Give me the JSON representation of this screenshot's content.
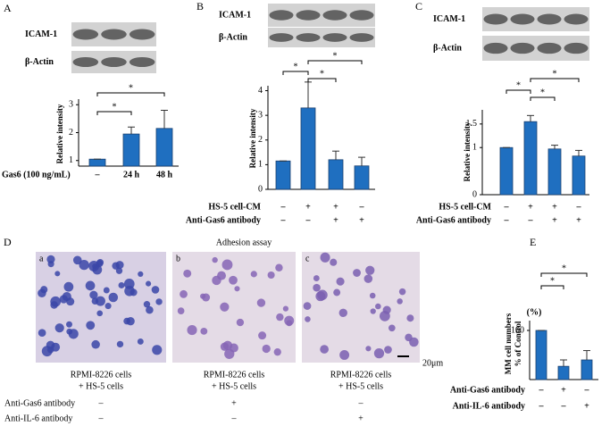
{
  "chart_data": [
    {
      "type": "bar",
      "panel": "A",
      "blot_labels": [
        "ICAM-1",
        "β-Actin"
      ],
      "ylabel": "Relative intensity",
      "xlabel": "Gas6 (100 ng/mL)",
      "categories": [
        "–",
        "24 h",
        "48 h"
      ],
      "values": [
        1.05,
        1.95,
        2.15
      ],
      "errors": [
        0,
        0.25,
        0.65
      ],
      "color": "#1f6fc0",
      "ylim": [
        0.8,
        3.2
      ],
      "yticks": [
        1,
        2,
        3
      ],
      "annotations": [
        "*",
        "*"
      ]
    },
    {
      "type": "bar",
      "panel": "B",
      "blot_labels": [
        "ICAM-1",
        "β-Actin"
      ],
      "ylabel": "Relative intensity",
      "conditions": [
        {
          "name": "HS-5 cell-CM",
          "values": [
            "–",
            "+",
            "+",
            "–"
          ]
        },
        {
          "name": "Anti-Gas6 antibody",
          "values": [
            "–",
            "–",
            "+",
            "+"
          ]
        }
      ],
      "values": [
        1.15,
        3.3,
        1.2,
        0.95
      ],
      "errors": [
        0,
        1.05,
        0.35,
        0.35
      ],
      "color": "#1f6fc0",
      "ylim": [
        0,
        4.2
      ],
      "yticks": [
        0,
        1,
        2,
        3,
        4
      ],
      "annotations": [
        "*",
        "*",
        "*"
      ]
    },
    {
      "type": "bar",
      "panel": "C",
      "blot_labels": [
        "ICAM-1",
        "β-Actin"
      ],
      "ylabel": "Relative intensity",
      "conditions": [
        {
          "name": "HS-5 cell-CM",
          "values": [
            "–",
            "+",
            "+",
            "–"
          ]
        },
        {
          "name": "Anti-Gas6 antibody",
          "values": [
            "–",
            "–",
            "+",
            "+"
          ]
        }
      ],
      "values": [
        1.0,
        1.55,
        0.97,
        0.82
      ],
      "errors": [
        0,
        0.13,
        0.08,
        0.12
      ],
      "color": "#1f6fc0",
      "ylim": [
        0,
        1.8
      ],
      "yticks": [
        0,
        1,
        1.5
      ],
      "annotations": [
        "*",
        "*",
        "*"
      ]
    },
    {
      "type": "bar",
      "panel": "E",
      "unit": "(%)",
      "ylabel": [
        "MM cell numbers",
        "% of Control"
      ],
      "conditions": [
        {
          "name": "Anti-Gas6 antibody",
          "values": [
            "–",
            "+",
            "–"
          ]
        },
        {
          "name": "Anti-IL-6 antibody",
          "values": [
            "–",
            "–",
            "+"
          ]
        }
      ],
      "values": [
        100,
        27,
        40
      ],
      "errors": [
        0,
        13,
        19
      ],
      "color": "#1f6fc0",
      "ylim": [
        0,
        120
      ],
      "yticks": [
        100
      ],
      "annotations": [
        "*",
        "*"
      ]
    }
  ],
  "panel_d": {
    "label": "D",
    "title": "Adhesion assay",
    "images": [
      {
        "label": "a",
        "caption": [
          "RPMI-8226 cells",
          "+ HS-5 cells"
        ]
      },
      {
        "label": "b",
        "caption": [
          "RPMI-8226 cells",
          "+ HS-5 cells"
        ]
      },
      {
        "label": "c",
        "caption": [
          "RPMI-8226 cells",
          "+ HS-5 cells"
        ]
      }
    ],
    "scale_bar": "20μm",
    "conditions": [
      {
        "name": "Anti-Gas6 antibody",
        "values": [
          "–",
          "+",
          "–"
        ]
      },
      {
        "name": "Anti-IL-6 antibody",
        "values": [
          "–",
          "–",
          "+"
        ]
      }
    ]
  }
}
